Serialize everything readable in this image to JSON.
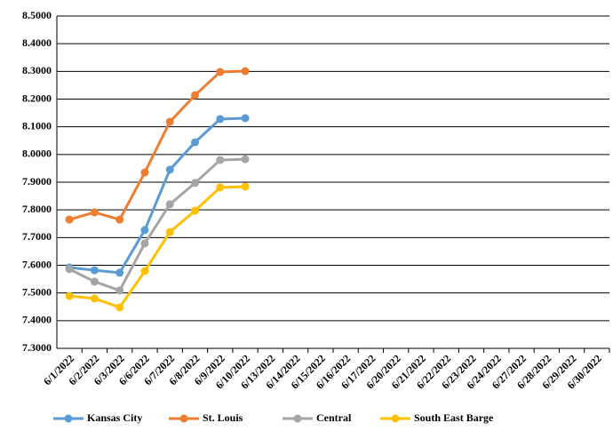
{
  "chart_data": {
    "type": "line",
    "categories": [
      "6/1/2022",
      "6/2/2022",
      "6/3/2022",
      "6/6/2022",
      "6/7/2022",
      "6/8/2022",
      "6/9/2022",
      "6/10/2022",
      "6/13/2022",
      "6/14/2022",
      "6/15/2022",
      "6/16/2022",
      "6/17/2022",
      "6/20/2022",
      "6/21/2022",
      "6/22/2022",
      "6/23/2022",
      "6/24/2022",
      "6/27/2022",
      "6/28/2022",
      "6/29/2022",
      "6/30/2022"
    ],
    "series": [
      {
        "name": "Kansas City",
        "color": "#5b9bd5",
        "values": [
          7.592,
          7.582,
          7.573,
          7.727,
          7.945,
          8.044,
          8.128,
          8.131,
          null,
          null,
          null,
          null,
          null,
          null,
          null,
          null,
          null,
          null,
          null,
          null,
          null,
          null
        ]
      },
      {
        "name": "St. Louis",
        "color": "#ed7d31",
        "values": [
          7.765,
          7.791,
          7.765,
          7.935,
          8.118,
          8.214,
          8.298,
          8.301,
          null,
          null,
          null,
          null,
          null,
          null,
          null,
          null,
          null,
          null,
          null,
          null,
          null,
          null
        ]
      },
      {
        "name": "Central",
        "color": "#a5a5a5",
        "values": [
          7.586,
          7.541,
          7.509,
          7.679,
          7.82,
          7.897,
          7.98,
          7.983,
          null,
          null,
          null,
          null,
          null,
          null,
          null,
          null,
          null,
          null,
          null,
          null,
          null,
          null
        ]
      },
      {
        "name": "South East Barge",
        "color": "#ffc000",
        "values": [
          7.489,
          7.48,
          7.448,
          7.579,
          7.72,
          7.797,
          7.881,
          7.884,
          null,
          null,
          null,
          null,
          null,
          null,
          null,
          null,
          null,
          null,
          null,
          null,
          null,
          null
        ]
      }
    ],
    "ylim": [
      7.3,
      8.5
    ],
    "yticks": [
      {
        "value": 7.3,
        "label": "7.3000"
      },
      {
        "value": 7.4,
        "label": "7.4000"
      },
      {
        "value": 7.5,
        "label": "7.5000"
      },
      {
        "value": 7.6,
        "label": "7.6000"
      },
      {
        "value": 7.7,
        "label": "7.7000"
      },
      {
        "value": 7.8,
        "label": "7.8000"
      },
      {
        "value": 7.9,
        "label": "7.9000"
      },
      {
        "value": 8.0,
        "label": "8.0000"
      },
      {
        "value": 8.1,
        "label": "8.1000"
      },
      {
        "value": 8.2,
        "label": "8.2000"
      },
      {
        "value": 8.3,
        "label": "8.3000"
      },
      {
        "value": 8.4,
        "label": "8.4000"
      },
      {
        "value": 8.5,
        "label": "8.5000"
      }
    ],
    "grid": true,
    "legend": "bottom"
  }
}
